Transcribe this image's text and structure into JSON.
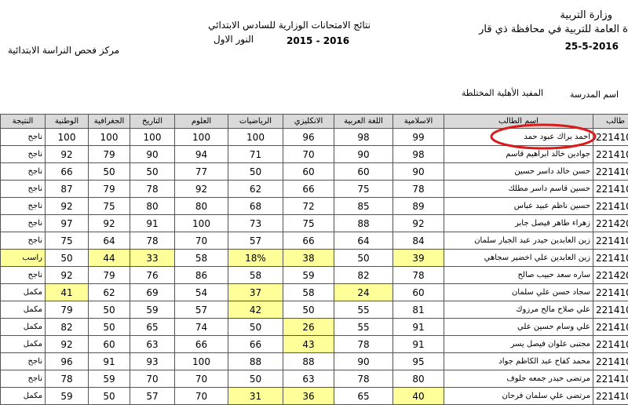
{
  "header": {
    "ministry": "وزارة التربية",
    "directorate": "ة العامة للتربية في محافظة ذي قار",
    "date": "25-5-2016",
    "title": "نتائج الامتحانات  الوزارية للسادس الابتدائي",
    "year": "2015 - 2016",
    "round": "النور الاول",
    "center": "مركز فحص النراسة الابتدائية",
    "school_label": "اسم المدرسة",
    "school_name": "المفيد الأهلية المختلطة"
  },
  "table": {
    "highlight_color": "#ffff99",
    "columns": [
      "النتيجة",
      "الوطنية",
      "الجغرافية",
      "التاريخ",
      "العلوم",
      "الرياضيات",
      "الانكليزي",
      "اللغة العربية",
      "الاسلامية",
      "اسم الطالب",
      "طالب"
    ],
    "rows": [
      [
        "ناجح",
        "100",
        "100",
        "100",
        "100",
        "100",
        "96",
        "98",
        "99",
        "احمد براك عبود حمد",
        "221410"
      ],
      [
        "ناجح",
        "92",
        "79",
        "90",
        "94",
        "71",
        "70",
        "90",
        "98",
        "جوادين خالد ابراهيم قاسم",
        "221410"
      ],
      [
        "ناجح",
        "66",
        "50",
        "50",
        "77",
        "50",
        "60",
        "60",
        "90",
        "حسن خالد داسر حسين",
        "221410"
      ],
      [
        "ناجح",
        "87",
        "79",
        "78",
        "92",
        "62",
        "66",
        "75",
        "78",
        "حسين قاسم داسر مطلك",
        "221410"
      ],
      [
        "ناجح",
        "92",
        "75",
        "80",
        "80",
        "68",
        "72",
        "85",
        "89",
        "حسين ناظم عبيد عباس",
        "221410"
      ],
      [
        "ناجح",
        "97",
        "92",
        "91",
        "100",
        "73",
        "75",
        "88",
        "92",
        "زهراء طاهر فيصل جابر",
        "221420"
      ],
      [
        "ناجح",
        "75",
        "64",
        "78",
        "70",
        "57",
        "66",
        "64",
        "84",
        "زين العابدين حيدر عبد الجبار سلمان",
        "221410"
      ],
      [
        {
          "text": "راسب",
          "fill": true
        },
        "50",
        {
          "text": "44",
          "fill": true
        },
        {
          "text": "33",
          "fill": true
        },
        "58",
        {
          "text": "18%",
          "fill": true
        },
        {
          "text": "38",
          "fill": true
        },
        "50",
        {
          "text": "39",
          "fill": true
        },
        "زين العابدين علي اخضير سجاهي",
        "221410"
      ],
      [
        "ناجح",
        "92",
        "79",
        "76",
        "86",
        "58",
        "59",
        "82",
        "78",
        "ساره سعد حبيب صالح",
        "221420"
      ],
      [
        "مكمل",
        {
          "text": "41",
          "fill": true
        },
        "62",
        "69",
        "54",
        {
          "text": "37",
          "fill": true
        },
        "58",
        {
          "text": "24",
          "fill": true
        },
        "60",
        "سجاد حسن علي سلمان",
        "221410"
      ],
      [
        "مكمل",
        "79",
        "50",
        "59",
        "57",
        {
          "text": "42",
          "fill": true
        },
        "50",
        "55",
        "81",
        "علي صلاح مالح مرزوك",
        "221410"
      ],
      [
        "مكمل",
        "82",
        "50",
        "65",
        "74",
        "50",
        {
          "text": "26",
          "fill": true
        },
        "55",
        "91",
        "علي وسام حسين علي",
        "221410"
      ],
      [
        "مكمل",
        "92",
        "60",
        "63",
        "66",
        "66",
        {
          "text": "43",
          "fill": true
        },
        "78",
        "91",
        "مجتبى علوان فيصل يسر",
        "221410"
      ],
      [
        "ناجح",
        "96",
        "91",
        "93",
        "100",
        "88",
        "88",
        "90",
        "95",
        "محمد كفاح عبد الكاظم جواد",
        "221410"
      ],
      [
        "ناجح",
        "78",
        "59",
        "70",
        "70",
        "50",
        "63",
        "78",
        "80",
        "مرتضى حيدر جمعه جلوف",
        "221410"
      ],
      [
        "مكمل",
        "59",
        "50",
        "57",
        "70",
        {
          "text": "31",
          "fill": true
        },
        {
          "text": "36",
          "fill": true
        },
        "65",
        {
          "text": "40",
          "fill": true
        },
        "مرتضى علي سلمان فرحان",
        "221410"
      ]
    ]
  }
}
